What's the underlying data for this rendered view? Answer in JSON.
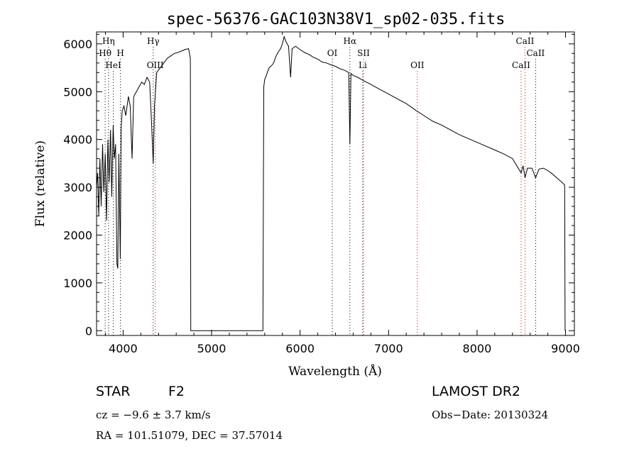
{
  "chart_data": {
    "type": "line",
    "title": "spec-56376-GAC103N38V1_sp02-035.fits",
    "xlabel": "Wavelength (Å)",
    "ylabel": "Flux (relative)",
    "xlim": [
      3700,
      9100
    ],
    "ylim": [
      -100,
      6250
    ],
    "xticks": [
      4000,
      5000,
      6000,
      7000,
      8000,
      9000
    ],
    "yticks": [
      0,
      1000,
      2000,
      3000,
      4000,
      5000,
      6000
    ],
    "grid": false,
    "series": [
      {
        "values": [
          [
            3700,
            3000
          ],
          [
            3712,
            3300
          ],
          [
            3725,
            2400
          ],
          [
            3738,
            3600
          ],
          [
            3752,
            2600
          ],
          [
            3768,
            3900
          ],
          [
            3782,
            2900
          ],
          [
            3798,
            3700
          ],
          [
            3812,
            2300
          ],
          [
            3828,
            4000
          ],
          [
            3842,
            3100
          ],
          [
            3858,
            4200
          ],
          [
            3872,
            2800
          ],
          [
            3888,
            4300
          ],
          [
            3900,
            3600
          ],
          [
            3915,
            3900
          ],
          [
            3930,
            1400
          ],
          [
            3940,
            1300
          ],
          [
            3952,
            3700
          ],
          [
            3968,
            1500
          ],
          [
            3978,
            4200
          ],
          [
            3990,
            4600
          ],
          [
            4010,
            4700
          ],
          [
            4030,
            4500
          ],
          [
            4060,
            4900
          ],
          [
            4080,
            4700
          ],
          [
            4101,
            3600
          ],
          [
            4120,
            4900
          ],
          [
            4150,
            5000
          ],
          [
            4180,
            5100
          ],
          [
            4210,
            5200
          ],
          [
            4240,
            5150
          ],
          [
            4270,
            5300
          ],
          [
            4300,
            5200
          ],
          [
            4320,
            4400
          ],
          [
            4340,
            3500
          ],
          [
            4355,
            4700
          ],
          [
            4380,
            5400
          ],
          [
            4420,
            5500
          ],
          [
            4460,
            5600
          ],
          [
            4500,
            5700
          ],
          [
            4540,
            5750
          ],
          [
            4580,
            5800
          ],
          [
            4620,
            5820
          ],
          [
            4660,
            5850
          ],
          [
            4700,
            5880
          ],
          [
            4740,
            5900
          ],
          [
            4760,
            5700
          ],
          [
            4765,
            0
          ],
          [
            5580,
            0
          ],
          [
            5590,
            5100
          ],
          [
            5600,
            5250
          ],
          [
            5620,
            5350
          ],
          [
            5650,
            5500
          ],
          [
            5680,
            5550
          ],
          [
            5700,
            5600
          ],
          [
            5730,
            5750
          ],
          [
            5760,
            5850
          ],
          [
            5780,
            5900
          ],
          [
            5800,
            6000
          ],
          [
            5820,
            6150
          ],
          [
            5840,
            6050
          ],
          [
            5870,
            5950
          ],
          [
            5893,
            5300
          ],
          [
            5910,
            5900
          ],
          [
            5950,
            5950
          ],
          [
            6000,
            5880
          ],
          [
            6050,
            5820
          ],
          [
            6100,
            5780
          ],
          [
            6150,
            5720
          ],
          [
            6200,
            5680
          ],
          [
            6250,
            5620
          ],
          [
            6300,
            5600
          ],
          [
            6350,
            5560
          ],
          [
            6400,
            5530
          ],
          [
            6450,
            5480
          ],
          [
            6500,
            5450
          ],
          [
            6550,
            5400
          ],
          [
            6563,
            3900
          ],
          [
            6575,
            5380
          ],
          [
            6600,
            5340
          ],
          [
            6650,
            5300
          ],
          [
            6700,
            5250
          ],
          [
            6750,
            5200
          ],
          [
            6800,
            5150
          ],
          [
            6900,
            5050
          ],
          [
            7000,
            4950
          ],
          [
            7100,
            4850
          ],
          [
            7200,
            4750
          ],
          [
            7300,
            4620
          ],
          [
            7400,
            4500
          ],
          [
            7500,
            4380
          ],
          [
            7600,
            4300
          ],
          [
            7700,
            4200
          ],
          [
            7800,
            4100
          ],
          [
            7900,
            4020
          ],
          [
            8000,
            3940
          ],
          [
            8100,
            3860
          ],
          [
            8200,
            3780
          ],
          [
            8300,
            3700
          ],
          [
            8400,
            3600
          ],
          [
            8498,
            3300
          ],
          [
            8520,
            3450
          ],
          [
            8542,
            3200
          ],
          [
            8570,
            3400
          ],
          [
            8620,
            3400
          ],
          [
            8662,
            3200
          ],
          [
            8700,
            3380
          ],
          [
            8750,
            3400
          ],
          [
            8800,
            3350
          ],
          [
            8850,
            3280
          ],
          [
            8900,
            3200
          ],
          [
            8950,
            3120
          ],
          [
            8990,
            3050
          ],
          [
            8995,
            0
          ]
        ]
      }
    ],
    "line_markers": [
      {
        "label": "Hη",
        "x": 3835,
        "row": 0,
        "color": "#000000"
      },
      {
        "label": "Hθ",
        "x": 3797,
        "row": 1,
        "color": "#000000"
      },
      {
        "label": "H",
        "x": 3970,
        "row": 1,
        "color": "#000000"
      },
      {
        "label": "HeI",
        "x": 3889,
        "row": 2,
        "color": "#000000"
      },
      {
        "label": "Hγ",
        "x": 4340,
        "row": 0,
        "color": "#000000"
      },
      {
        "label": "OIII",
        "x": 4363,
        "row": 2,
        "color": "#cc0000"
      },
      {
        "label": "Hα",
        "x": 6563,
        "row": 0,
        "color": "#000000"
      },
      {
        "label": "OI",
        "x": 6364,
        "row": 1,
        "color": "#000000"
      },
      {
        "label": "SII",
        "x": 6717,
        "row": 1,
        "color": "#cc0000"
      },
      {
        "label": "Li",
        "x": 6708,
        "row": 2,
        "color": "#000000"
      },
      {
        "label": "OII",
        "x": 7325,
        "row": 2,
        "color": "#cc0000"
      },
      {
        "label": "CaII",
        "x": 8542,
        "row": 0,
        "color": "#cc0000"
      },
      {
        "label": "CaII",
        "x": 8662,
        "row": 1,
        "color": "#000000"
      },
      {
        "label": "CaII",
        "x": 8498,
        "row": 2,
        "color": "#cc0000"
      }
    ]
  },
  "footer": {
    "object_class": "STAR",
    "subclass": "F2",
    "survey": "LAMOST DR2",
    "cz": "cz = −9.6 ± 3.7 km/s",
    "obs_date": "Obs−Date: 20130324",
    "coords": "RA = 101.51079, DEC =  37.57014"
  }
}
